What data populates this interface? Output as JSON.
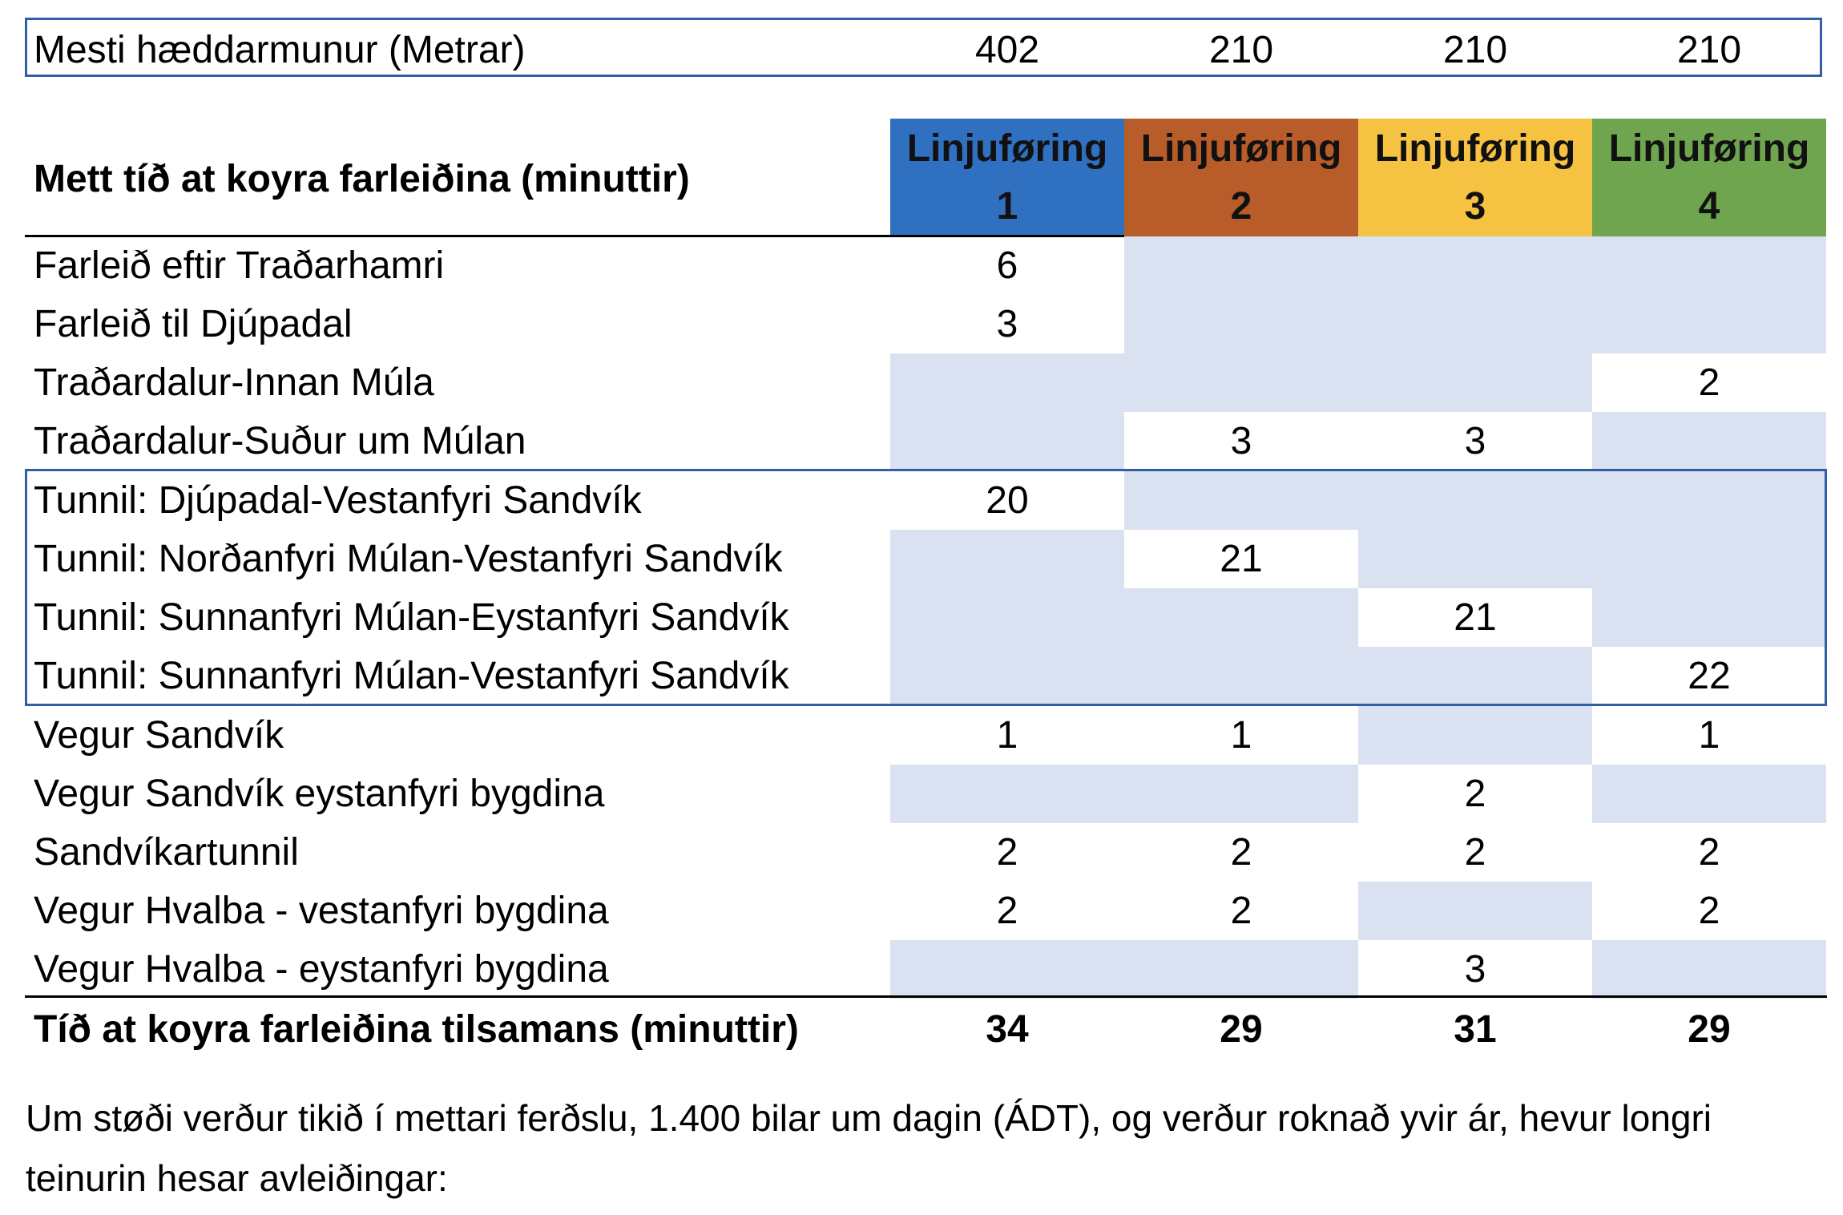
{
  "summary": {
    "label": "Mesti hæddarmunur (Metrar)",
    "values": [
      "402",
      "210",
      "210",
      "210"
    ]
  },
  "table": {
    "title": "Mett tíð at koyra farleiðina (minuttir)",
    "columns": [
      {
        "line1": "Linjuføring",
        "line2": "1",
        "color": "#3070c0",
        "text_color": "#111111"
      },
      {
        "line1": "Linjuføring",
        "line2": "2",
        "color": "#b85c2a",
        "text_color": "#111111"
      },
      {
        "line1": "Linjuføring",
        "line2": "3",
        "color": "#f5c242",
        "text_color": "#111111"
      },
      {
        "line1": "Linjuføring",
        "line2": "4",
        "color": "#70a54f",
        "text_color": "#111111"
      }
    ],
    "rows": [
      {
        "label": "Farleið eftir Traðarhamri",
        "values": [
          "6",
          "",
          "",
          ""
        ]
      },
      {
        "label": "Farleið til Djúpadal",
        "values": [
          "3",
          "",
          "",
          ""
        ]
      },
      {
        "label": "Traðardalur-Innan Múla",
        "values": [
          "",
          "",
          "",
          "2"
        ]
      },
      {
        "label": "Traðardalur-Suður um Múlan",
        "values": [
          "",
          "3",
          "3",
          ""
        ]
      },
      {
        "label": "Tunnil: Djúpadal-Vestanfyri Sandvík",
        "values": [
          "20",
          "",
          "",
          ""
        ]
      },
      {
        "label": "Tunnil: Norðanfyri Múlan-Vestanfyri Sandvík",
        "values": [
          "",
          "21",
          "",
          ""
        ]
      },
      {
        "label": "Tunnil: Sunnanfyri Múlan-Eystanfyri Sandvík",
        "values": [
          "",
          "",
          "21",
          ""
        ]
      },
      {
        "label": "Tunnil: Sunnanfyri Múlan-Vestanfyri Sandvík",
        "values": [
          "",
          "",
          "",
          "22"
        ]
      },
      {
        "label": "Vegur Sandvík",
        "values": [
          "1",
          "1",
          "",
          "1"
        ]
      },
      {
        "label": "Vegur Sandvík eystanfyri bygdina",
        "values": [
          "",
          "",
          "2",
          ""
        ]
      },
      {
        "label": "Sandvíkartunnil",
        "values": [
          "2",
          "2",
          "2",
          "2"
        ]
      },
      {
        "label": "Vegur Hvalba - vestanfyri bygdina",
        "values": [
          "2",
          "2",
          "",
          "2"
        ]
      },
      {
        "label": "Vegur Hvalba - eystanfyri bygdina",
        "values": [
          "",
          "",
          "3",
          ""
        ]
      }
    ],
    "total": {
      "label": "Tíð at koyra farleiðina tilsamans (minuttir)",
      "values": [
        "34",
        "29",
        "31",
        "29"
      ]
    },
    "shade_color": "#dae1f0",
    "border_color": "#2e5fa7"
  },
  "note": "Um støði verður tikið í mettari ferðslu, 1.400 bilar um dagin (ÁDT), og verður roknað yvir ár, hevur longri teinurin hesar avleiðingar:"
}
